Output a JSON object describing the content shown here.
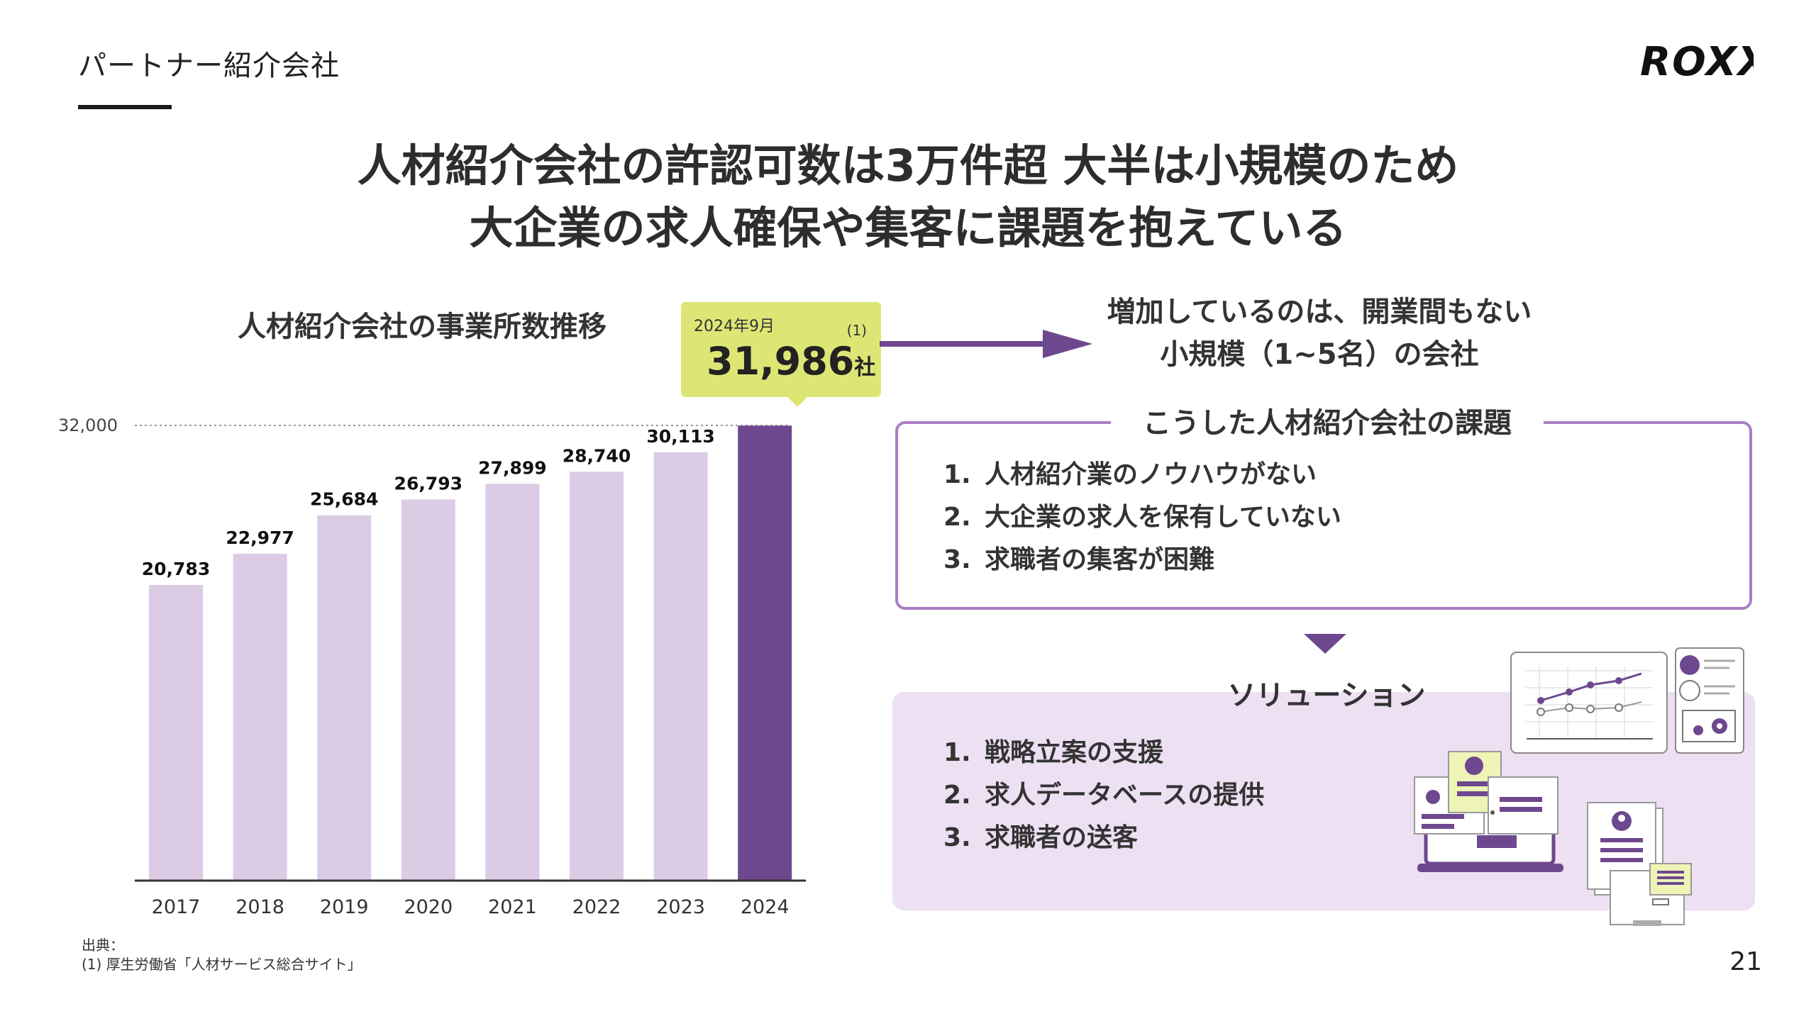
{
  "header": {
    "section_label": "パートナー紹介会社",
    "logo_text": "ROXX"
  },
  "headline": {
    "line1": "人材紹介会社の許認可数は3万件超 大半は小規模のため",
    "line2": "大企業の求人確保や集客に課題を抱えている"
  },
  "chart_data": {
    "type": "bar",
    "title": "人材紹介会社の事業所数推移",
    "categories": [
      "2017",
      "2018",
      "2019",
      "2020",
      "2021",
      "2022",
      "2023",
      "2024"
    ],
    "values": [
      20783,
      22977,
      25684,
      26793,
      27899,
      28740,
      30113,
      31986
    ],
    "value_labels": [
      "20,783",
      "22,977",
      "25,684",
      "26,793",
      "27,899",
      "28,740",
      "30,113",
      ""
    ],
    "reference_line": {
      "value": 32000,
      "label": "32,000"
    },
    "ylim": [
      0,
      32000
    ],
    "highlight_index": 7,
    "xlabel": "",
    "ylabel": "",
    "colors": {
      "bar": "#dccbe5",
      "highlight": "#6e488e",
      "axis": "#333333",
      "reference": "#999999"
    }
  },
  "callout": {
    "date": "2024年9月",
    "value": "31,986",
    "unit": "社",
    "note": "(1)"
  },
  "increase_note": {
    "line1": "増加しているのは、開業間もない",
    "line2": "小規模（1~5名）の会社"
  },
  "issues": {
    "title": "こうした人材紹介会社の課題",
    "items": [
      {
        "num": "1.",
        "text": "人材紹介業のノウハウがない"
      },
      {
        "num": "2.",
        "text": "大企業の求人を保有していない"
      },
      {
        "num": "3.",
        "text": "求職者の集客が困難"
      }
    ]
  },
  "solutions": {
    "title": "ソリューション",
    "items": [
      {
        "num": "1.",
        "text": "戦略立案の支援"
      },
      {
        "num": "2.",
        "text": "求人データベースの提供"
      },
      {
        "num": "3.",
        "text": "求職者の送客"
      }
    ]
  },
  "source": {
    "label": "出典：",
    "note": "(1) 厚生労働省「人材サービス総合サイト」"
  },
  "page_number": "21",
  "colors": {
    "purple": "#6e488e",
    "lavender": "#dccbe5",
    "callout": "#dde675",
    "border": "#a97fc3",
    "solution_bg": "#ede0f3"
  }
}
